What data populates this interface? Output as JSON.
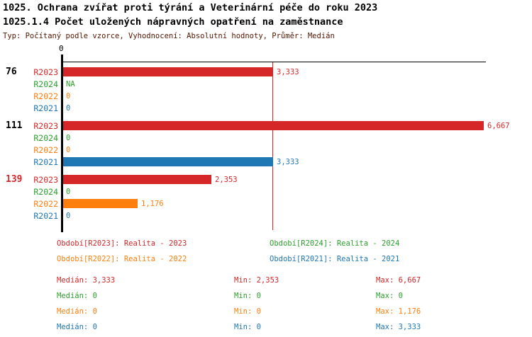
{
  "header": {
    "title_line1": "1025. Ochrana zvířat proti týrání a Veterinární péče do roku 2023",
    "title_line2": "1025.1.4 Počet uložených nápravných opatření na zaměstnance",
    "meta": "Typ: Počítaný podle vzorce, Vyhodnocení: Absolutní hodnoty, Průměr: Medián"
  },
  "colors": {
    "r2023_red": "#d62728",
    "r2024_green": "#2ca02c",
    "r2022_orange": "#ff7f0e",
    "r2021_blue": "#1f77b4",
    "axis_black": "#000000",
    "meta_text": "#541600",
    "background": "#ffffff"
  },
  "chart_data": {
    "type": "bar",
    "orientation": "horizontal",
    "axis_zero_label": "0",
    "xlim": [
      0,
      6850
    ],
    "grid": false,
    "median_line_value": 3333,
    "series_colors": {
      "R2023": "#d62728",
      "R2024": "#2ca02c",
      "R2022": "#ff7f0e",
      "R2021": "#1f77b4"
    },
    "groups": [
      {
        "label": "76",
        "label_color": "#000000",
        "rows": [
          {
            "series": "R2023",
            "value": 3333,
            "display": "3,333"
          },
          {
            "series": "R2024",
            "value": null,
            "display": "NA"
          },
          {
            "series": "R2022",
            "value": 0,
            "display": "0"
          },
          {
            "series": "R2021",
            "value": 0,
            "display": "0"
          }
        ]
      },
      {
        "label": "111",
        "label_color": "#000000",
        "rows": [
          {
            "series": "R2023",
            "value": 6667,
            "display": "6,667"
          },
          {
            "series": "R2024",
            "value": 0,
            "display": "0"
          },
          {
            "series": "R2022",
            "value": 0,
            "display": "0"
          },
          {
            "series": "R2021",
            "value": 3333,
            "display": "3,333"
          }
        ]
      },
      {
        "label": "139",
        "label_color": "#d62728",
        "rows": [
          {
            "series": "R2023",
            "value": 2353,
            "display": "2,353"
          },
          {
            "series": "R2024",
            "value": 0,
            "display": "0"
          },
          {
            "series": "R2022",
            "value": 1176,
            "display": "1,176"
          },
          {
            "series": "R2021",
            "value": 0,
            "display": "0"
          }
        ]
      }
    ],
    "legend": [
      {
        "series": "R2023",
        "label": "Období[R2023]: Realita - 2023"
      },
      {
        "series": "R2024",
        "label": "Období[R2024]: Realita - 2024"
      },
      {
        "series": "R2022",
        "label": "Období[R2022]: Realita - 2022"
      },
      {
        "series": "R2021",
        "label": "Období[R2021]: Realita - 2021"
      }
    ],
    "stats_labels": {
      "median": "Medián",
      "min": "Min",
      "max": "Max"
    },
    "stats": [
      {
        "series": "R2023",
        "median": "3,333",
        "min": "2,353",
        "max": "6,667"
      },
      {
        "series": "R2024",
        "median": "0",
        "min": "0",
        "max": "0"
      },
      {
        "series": "R2022",
        "median": "0",
        "min": "0",
        "max": "1,176"
      },
      {
        "series": "R2021",
        "median": "0",
        "min": "0",
        "max": "3,333"
      }
    ]
  }
}
